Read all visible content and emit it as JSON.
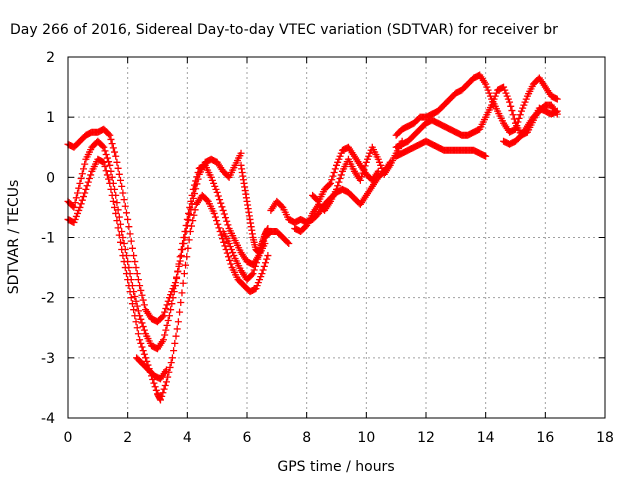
{
  "chart_data": {
    "type": "scatter",
    "title": "Day 266 of 2016, Sidereal Day-to-day VTEC variation (SDTVAR) for receiver br",
    "xlabel": "GPS time / hours",
    "ylabel": "SDTVAR / TECUs",
    "xlim": [
      0,
      18
    ],
    "ylim": [
      -4,
      2
    ],
    "x_ticks": [
      "0",
      "2",
      "4",
      "6",
      "8",
      "10",
      "12",
      "14",
      "16",
      "18"
    ],
    "y_ticks": [
      "2",
      "1",
      "0",
      "-1",
      "-2",
      "-3",
      "-4"
    ],
    "grid": true,
    "marker": "plus",
    "color": "#ff0000",
    "series": [
      {
        "points": [
          [
            0,
            0.55
          ],
          [
            0.2,
            0.5
          ],
          [
            0.4,
            0.6
          ],
          [
            0.6,
            0.7
          ],
          [
            0.8,
            0.75
          ],
          [
            1.0,
            0.75
          ],
          [
            1.2,
            0.8
          ],
          [
            1.4,
            0.7
          ],
          [
            1.6,
            0.35
          ],
          [
            1.8,
            -0.15
          ],
          [
            2.0,
            -0.7
          ],
          [
            2.2,
            -1.3
          ],
          [
            2.4,
            -1.8
          ],
          [
            2.6,
            -2.2
          ],
          [
            2.8,
            -2.35
          ],
          [
            3.0,
            -2.4
          ],
          [
            3.2,
            -2.3
          ],
          [
            3.4,
            -2.0
          ],
          [
            3.6,
            -1.75
          ],
          [
            3.8,
            -1.3
          ],
          [
            4.0,
            -0.8
          ],
          [
            4.2,
            -0.35
          ],
          [
            4.4,
            0.05
          ],
          [
            4.6,
            0.25
          ],
          [
            4.8,
            0.3
          ],
          [
            5.0,
            0.25
          ],
          [
            5.2,
            0.1
          ],
          [
            5.4,
            0.0
          ],
          [
            5.6,
            0.2
          ],
          [
            5.8,
            0.4
          ]
        ]
      },
      {
        "points": [
          [
            0,
            -0.4
          ],
          [
            0.2,
            -0.5
          ],
          [
            0.4,
            -0.1
          ],
          [
            0.6,
            0.3
          ],
          [
            0.8,
            0.5
          ],
          [
            1.0,
            0.6
          ],
          [
            1.2,
            0.5
          ],
          [
            1.4,
            0.2
          ],
          [
            1.6,
            -0.3
          ],
          [
            1.8,
            -0.9
          ],
          [
            2.0,
            -1.4
          ],
          [
            2.2,
            -1.9
          ],
          [
            2.4,
            -2.3
          ],
          [
            2.6,
            -2.6
          ],
          [
            2.8,
            -2.8
          ],
          [
            3.0,
            -2.85
          ],
          [
            3.2,
            -2.7
          ],
          [
            3.4,
            -2.3
          ],
          [
            3.6,
            -1.8
          ],
          [
            3.8,
            -1.2
          ],
          [
            4.0,
            -0.7
          ],
          [
            4.2,
            -0.2
          ],
          [
            4.4,
            0.15
          ],
          [
            4.6,
            0.2
          ],
          [
            4.8,
            0.0
          ],
          [
            5.0,
            -0.25
          ],
          [
            5.2,
            -0.55
          ],
          [
            5.4,
            -0.85
          ],
          [
            5.6,
            -1.05
          ],
          [
            5.8,
            -1.25
          ],
          [
            6.0,
            -1.4
          ],
          [
            6.2,
            -1.45
          ],
          [
            6.4,
            -1.3
          ],
          [
            6.6,
            -1.1
          ]
        ]
      },
      {
        "points": [
          [
            0,
            -0.7
          ],
          [
            0.2,
            -0.75
          ],
          [
            0.4,
            -0.5
          ],
          [
            0.6,
            -0.2
          ],
          [
            0.8,
            0.1
          ],
          [
            1.0,
            0.3
          ],
          [
            1.2,
            0.25
          ],
          [
            1.4,
            -0.1
          ],
          [
            1.6,
            -0.6
          ],
          [
            1.8,
            -1.2
          ],
          [
            2.0,
            -1.7
          ],
          [
            2.2,
            -2.2
          ],
          [
            2.4,
            -2.7
          ],
          [
            2.6,
            -3.0
          ],
          [
            2.8,
            -3.3
          ],
          [
            3.0,
            -3.6
          ],
          [
            3.1,
            -3.7
          ],
          [
            3.3,
            -3.4
          ],
          [
            3.5,
            -3.0
          ],
          [
            3.7,
            -2.4
          ],
          [
            3.9,
            -1.6
          ],
          [
            4.1,
            -0.9
          ],
          [
            4.3,
            -0.45
          ],
          [
            4.5,
            -0.3
          ],
          [
            4.7,
            -0.4
          ],
          [
            4.9,
            -0.6
          ],
          [
            5.1,
            -0.9
          ],
          [
            5.3,
            -1.2
          ],
          [
            5.5,
            -1.5
          ],
          [
            5.7,
            -1.7
          ],
          [
            5.9,
            -1.8
          ],
          [
            6.1,
            -1.9
          ],
          [
            6.3,
            -1.85
          ],
          [
            6.5,
            -1.6
          ],
          [
            6.7,
            -1.3
          ]
        ]
      },
      {
        "points": [
          [
            2.3,
            -3.0
          ],
          [
            2.5,
            -3.1
          ],
          [
            2.7,
            -3.2
          ],
          [
            2.9,
            -3.3
          ],
          [
            3.1,
            -3.35
          ],
          [
            3.3,
            -3.2
          ]
        ]
      },
      {
        "points": [
          [
            5.2,
            -0.9
          ],
          [
            5.4,
            -1.1
          ],
          [
            5.6,
            -1.35
          ],
          [
            5.8,
            -1.55
          ],
          [
            6.0,
            -1.7
          ],
          [
            6.2,
            -1.6
          ],
          [
            6.4,
            -1.3
          ],
          [
            6.6,
            -1.0
          ],
          [
            6.8,
            -0.9
          ],
          [
            7.0,
            -0.9
          ],
          [
            7.2,
            -1.0
          ],
          [
            7.4,
            -1.1
          ]
        ]
      },
      {
        "points": [
          [
            6.8,
            -0.55
          ],
          [
            7.0,
            -0.4
          ],
          [
            7.2,
            -0.5
          ],
          [
            7.4,
            -0.7
          ],
          [
            7.6,
            -0.75
          ],
          [
            7.8,
            -0.7
          ],
          [
            8.0,
            -0.75
          ],
          [
            8.2,
            -0.7
          ],
          [
            8.4,
            -0.6
          ],
          [
            8.6,
            -0.45
          ],
          [
            8.8,
            -0.35
          ],
          [
            9.0,
            -0.25
          ],
          [
            9.2,
            -0.2
          ],
          [
            9.4,
            -0.25
          ],
          [
            9.6,
            -0.35
          ],
          [
            9.8,
            -0.45
          ],
          [
            10.0,
            -0.3
          ],
          [
            10.2,
            -0.15
          ],
          [
            10.4,
            0.0
          ],
          [
            10.6,
            0.1
          ],
          [
            10.8,
            0.25
          ]
        ]
      },
      {
        "points": [
          [
            7.6,
            -0.85
          ],
          [
            7.8,
            -0.9
          ],
          [
            8.0,
            -0.8
          ],
          [
            8.2,
            -0.6
          ],
          [
            8.4,
            -0.45
          ],
          [
            8.6,
            -0.55
          ],
          [
            8.8,
            -0.4
          ],
          [
            9.0,
            -0.2
          ],
          [
            9.2,
            0.1
          ],
          [
            9.4,
            0.3
          ],
          [
            9.6,
            0.1
          ],
          [
            9.8,
            -0.05
          ],
          [
            10.0,
            0.25
          ],
          [
            10.2,
            0.5
          ],
          [
            10.4,
            0.3
          ],
          [
            10.6,
            0.05
          ],
          [
            10.8,
            0.2
          ],
          [
            11.0,
            0.4
          ],
          [
            11.2,
            0.6
          ]
        ]
      },
      {
        "points": [
          [
            8.2,
            -0.3
          ],
          [
            8.4,
            -0.4
          ],
          [
            8.6,
            -0.2
          ],
          [
            8.8,
            -0.1
          ],
          [
            9.0,
            0.2
          ],
          [
            9.2,
            0.45
          ],
          [
            9.4,
            0.5
          ],
          [
            9.6,
            0.35
          ],
          [
            9.8,
            0.2
          ],
          [
            10.0,
            0.05
          ],
          [
            10.2,
            -0.05
          ],
          [
            10.4,
            0.1
          ]
        ]
      },
      {
        "points": [
          [
            11.0,
            0.7
          ],
          [
            11.2,
            0.8
          ],
          [
            11.4,
            0.85
          ],
          [
            11.6,
            0.9
          ],
          [
            11.8,
            1.0
          ],
          [
            12.0,
            1.0
          ],
          [
            12.2,
            1.05
          ],
          [
            12.4,
            1.1
          ],
          [
            12.6,
            1.2
          ],
          [
            12.8,
            1.3
          ],
          [
            13.0,
            1.4
          ],
          [
            13.2,
            1.45
          ],
          [
            13.4,
            1.55
          ],
          [
            13.6,
            1.65
          ],
          [
            13.8,
            1.7
          ],
          [
            14.0,
            1.55
          ],
          [
            14.2,
            1.3
          ],
          [
            14.4,
            1.1
          ],
          [
            14.6,
            0.9
          ],
          [
            14.8,
            0.75
          ],
          [
            15.0,
            0.8
          ],
          [
            15.2,
            1.1
          ],
          [
            15.4,
            1.35
          ],
          [
            15.6,
            1.55
          ],
          [
            15.8,
            1.65
          ],
          [
            16.0,
            1.5
          ],
          [
            16.2,
            1.35
          ],
          [
            16.4,
            1.3
          ]
        ]
      },
      {
        "points": [
          [
            11.0,
            0.5
          ],
          [
            11.2,
            0.55
          ],
          [
            11.4,
            0.6
          ],
          [
            11.6,
            0.7
          ],
          [
            11.8,
            0.8
          ],
          [
            12.0,
            0.9
          ],
          [
            12.2,
            0.95
          ],
          [
            12.4,
            0.9
          ],
          [
            12.6,
            0.85
          ],
          [
            12.8,
            0.8
          ],
          [
            13.0,
            0.75
          ],
          [
            13.2,
            0.7
          ],
          [
            13.4,
            0.7
          ],
          [
            13.6,
            0.75
          ],
          [
            13.8,
            0.8
          ],
          [
            14.0,
            1.0
          ],
          [
            14.2,
            1.2
          ],
          [
            14.4,
            1.45
          ],
          [
            14.6,
            1.5
          ],
          [
            14.8,
            1.25
          ],
          [
            15.0,
            0.9
          ],
          [
            15.2,
            0.7
          ],
          [
            15.4,
            0.75
          ],
          [
            15.6,
            0.95
          ],
          [
            15.8,
            1.15
          ],
          [
            16.0,
            1.1
          ],
          [
            16.2,
            1.05
          ],
          [
            16.4,
            1.1
          ]
        ]
      },
      {
        "points": [
          [
            11.0,
            0.35
          ],
          [
            11.2,
            0.4
          ],
          [
            11.4,
            0.45
          ],
          [
            11.6,
            0.5
          ],
          [
            11.8,
            0.55
          ],
          [
            12.0,
            0.6
          ],
          [
            12.2,
            0.55
          ],
          [
            12.4,
            0.5
          ],
          [
            12.6,
            0.45
          ],
          [
            12.8,
            0.45
          ],
          [
            13.0,
            0.45
          ],
          [
            13.2,
            0.45
          ],
          [
            13.4,
            0.45
          ],
          [
            13.6,
            0.45
          ],
          [
            13.8,
            0.4
          ],
          [
            14.0,
            0.35
          ]
        ]
      },
      {
        "points": [
          [
            14.6,
            0.6
          ],
          [
            14.8,
            0.55
          ],
          [
            15.0,
            0.6
          ],
          [
            15.2,
            0.7
          ],
          [
            15.4,
            0.85
          ],
          [
            15.6,
            1.0
          ],
          [
            15.8,
            1.1
          ],
          [
            16.0,
            1.2
          ],
          [
            16.2,
            1.2
          ],
          [
            16.4,
            1.05
          ]
        ]
      },
      {
        "points": [
          [
            5.8,
            0.2
          ],
          [
            5.9,
            -0.1
          ],
          [
            6.0,
            -0.4
          ],
          [
            6.1,
            -0.7
          ],
          [
            6.2,
            -1.0
          ],
          [
            6.3,
            -1.2
          ],
          [
            6.4,
            -1.25
          ],
          [
            6.5,
            -1.1
          ],
          [
            6.6,
            -0.95
          ],
          [
            6.7,
            -0.85
          ]
        ]
      }
    ]
  }
}
